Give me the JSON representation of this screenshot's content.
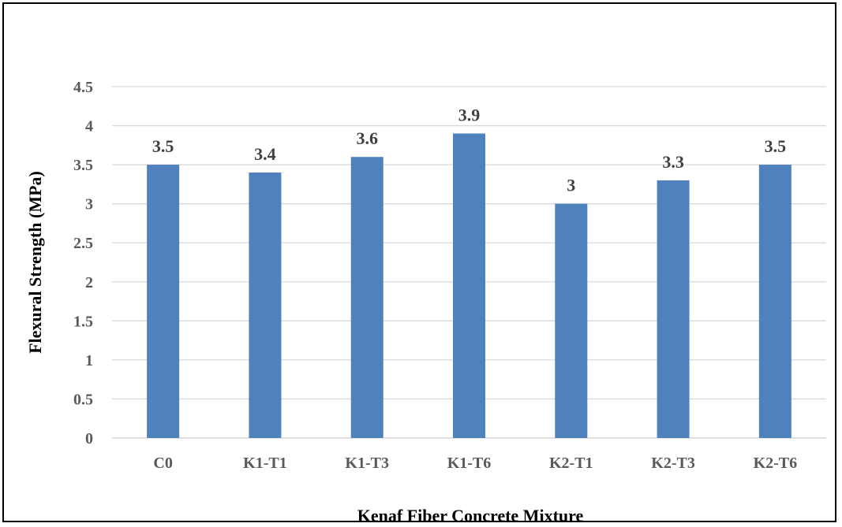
{
  "chart_data": {
    "type": "bar",
    "title": "",
    "xlabel": "Kenaf Fiber Concrete Mixture",
    "ylabel": "Flexural Strength (MPa)",
    "categories": [
      "C0",
      "K1-T1",
      "K1-T3",
      "K1-T6",
      "K2-T1",
      "K2-T3",
      "K2-T6"
    ],
    "series": [
      {
        "values": [
          3.5,
          3.4,
          3.6,
          3.9,
          3,
          3.3,
          3.5
        ]
      }
    ],
    "ylim": [
      0,
      4.5
    ],
    "yticks": [
      "0",
      "0.5",
      "1",
      "1.5",
      "2",
      "2.5",
      "3",
      "3.5",
      "4",
      "4.5"
    ],
    "data_labels": [
      "3.5",
      "3.4",
      "3.6",
      "3.9",
      "3",
      "3.3",
      "3.5"
    ],
    "grid": true,
    "legend": "none",
    "bar_color": "#4f81bd",
    "grid_color": "#d9d9d9"
  }
}
